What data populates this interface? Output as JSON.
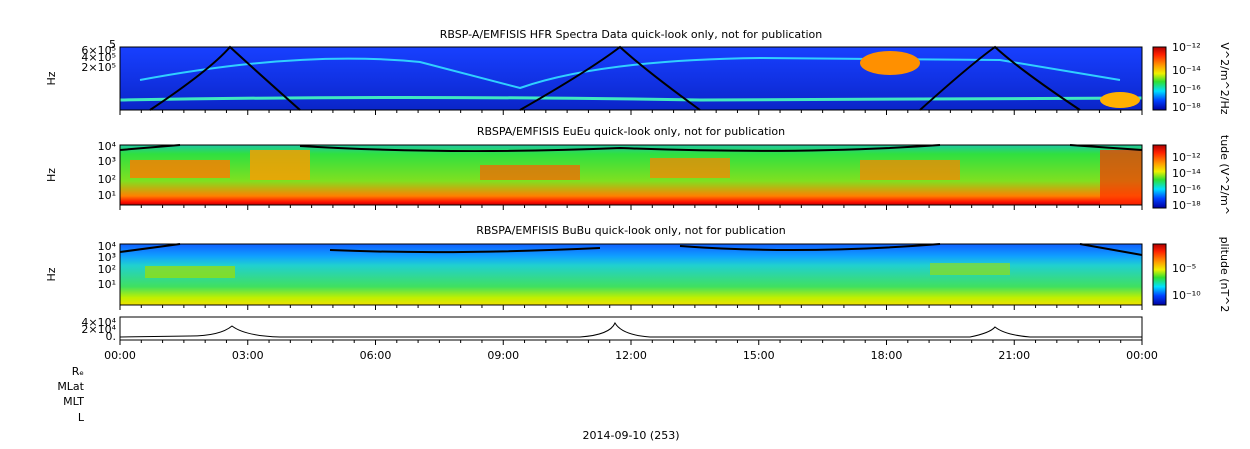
{
  "panels": [
    {
      "title": "RBSP-A/EMFISIS  HFR Spectra Data quick-look only, not for publication",
      "y_label": "Hz",
      "y_ticks": [
        "5",
        "6×10⁵",
        "4×10⁵",
        "2×10⁵"
      ],
      "colorbar_ticks": [
        "10⁻¹²",
        "10⁻¹⁴",
        "10⁻¹⁶",
        "10⁻¹⁸"
      ],
      "colorbar_title": "V^2/m^2/Hz"
    },
    {
      "title": "RBSPA/EMFISIS  EuEu quick-look only, not for publication",
      "y_label": "Hz",
      "y_ticks": [
        "10⁴",
        "10³",
        "10²",
        "10¹"
      ],
      "colorbar_ticks": [
        "10⁻¹²",
        "10⁻¹⁴",
        "10⁻¹⁶",
        "10⁻¹⁸"
      ],
      "colorbar_title": "tude (V^2/m^"
    },
    {
      "title": "RBSPA/EMFISIS  BuBu quick-look only, not for publication",
      "y_label": "Hz",
      "y_ticks": [
        "10⁴",
        "10³",
        "10²",
        "10¹"
      ],
      "colorbar_ticks": [
        "10⁻⁵",
        "10⁻¹⁰"
      ],
      "colorbar_title": "plitude (nT^2"
    },
    {
      "y_ticks": [
        "4×10⁴",
        "2×10⁴",
        "0."
      ]
    }
  ],
  "x_ticks": [
    "00:00",
    "03:00",
    "06:00",
    "09:00",
    "12:00",
    "15:00",
    "18:00",
    "21:00",
    "00:00"
  ],
  "ephemeris_labels": [
    "Rₑ",
    "MLat",
    "MLT",
    "L"
  ],
  "date": "2014-09-10 (253)"
}
